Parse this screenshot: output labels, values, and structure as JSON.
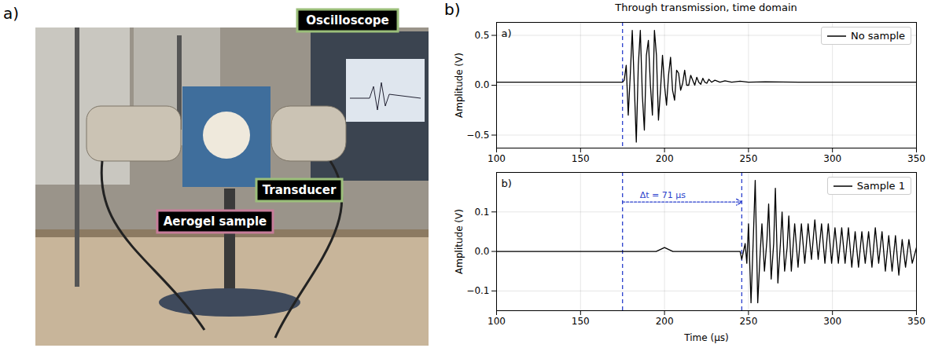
{
  "figure": {
    "panels": [
      {
        "label": "a)",
        "type": "photo",
        "labels": [
          "Oscilloscope",
          "Transducer",
          "Aerogel sample"
        ]
      },
      {
        "label": "b)",
        "title": "Through transmission, time domain"
      }
    ]
  },
  "chart_data": [
    {
      "type": "line",
      "panel_label": "a)",
      "x": [
        100,
        175,
        176,
        177.2,
        178.4,
        179.6,
        180.8,
        182,
        183.2,
        184.4,
        185.6,
        186.8,
        188,
        189.2,
        190.4,
        191.6,
        192.8,
        194,
        195.2,
        196.4,
        197.6,
        198.8,
        200,
        201.2,
        202.4,
        203.6,
        204.8,
        206,
        207.2,
        208.4,
        209.6,
        210.8,
        212,
        213.2,
        214.4,
        215.6,
        216.8,
        218,
        219.2,
        220.4,
        221.6,
        222.8,
        224,
        225.2,
        226.4,
        228,
        230,
        233,
        236,
        240,
        245,
        250,
        260,
        280,
        300,
        350
      ],
      "series": [
        {
          "name": "No sample",
          "color": "#000000",
          "line_style": "solid",
          "values": [
            0.03,
            0.03,
            0.05,
            0.2,
            -0.3,
            0.1,
            0.55,
            0.0,
            -0.57,
            0.2,
            0.55,
            -0.1,
            -0.45,
            0.3,
            0.45,
            0.0,
            -0.3,
            0.55,
            0.3,
            -0.35,
            -0.05,
            0.3,
            0.0,
            -0.2,
            0.1,
            0.28,
            -0.05,
            -0.15,
            0.15,
            0.12,
            -0.05,
            0.02,
            0.15,
            0.0,
            0.0,
            0.1,
            0.05,
            0.0,
            0.08,
            0.03,
            0.01,
            0.07,
            0.03,
            0.02,
            0.06,
            0.03,
            0.05,
            0.03,
            0.045,
            0.03,
            0.04,
            0.03,
            0.035,
            0.03,
            0.03,
            0.03
          ]
        }
      ],
      "xlim": [
        100,
        350
      ],
      "xticks": [
        100,
        150,
        200,
        250,
        300,
        350
      ],
      "ylim": [
        -0.63,
        0.63
      ],
      "yticks": [
        {
          "value": -0.5,
          "label": "−0.5"
        },
        {
          "value": 0,
          "label": "0.0"
        },
        {
          "value": 0.5,
          "label": "0.5"
        }
      ],
      "ylabel": "Amplitude (V)",
      "grid": true,
      "legend": "upper right",
      "vlines": {
        "x": [
          175
        ],
        "color": "#2a3fcc",
        "line_style": "dashed"
      }
    },
    {
      "type": "line",
      "panel_label": "b)",
      "x": [
        100,
        170,
        195,
        200,
        205,
        240,
        245,
        246,
        248,
        249,
        250,
        251.5,
        253,
        254,
        255.5,
        257,
        258,
        259.5,
        261,
        262,
        263.5,
        265,
        266,
        267.5,
        269,
        270,
        271.5,
        273,
        274,
        275.5,
        277.5,
        279.5,
        281.5,
        283.5,
        285.5,
        287.5,
        289.5,
        291.5,
        293.5,
        295.5,
        297.5,
        299.5,
        301.5,
        303.5,
        305.5,
        307.5,
        309.5,
        311.5,
        313.5,
        315.5,
        317.5,
        319.5,
        321.5,
        323.5,
        325.5,
        327.5,
        329.5,
        331.5,
        333.5,
        335.5,
        337.5,
        339.5,
        341.5,
        343.5,
        345.5,
        347.5,
        350
      ],
      "series": [
        {
          "name": "Sample 1",
          "color": "#000000",
          "line_style": "solid",
          "values": [
            0,
            0,
            0,
            0.01,
            0,
            0,
            0,
            -0.02,
            0.02,
            -0.03,
            0.07,
            -0.13,
            0.05,
            0.18,
            -0.13,
            0,
            0.07,
            -0.05,
            0.03,
            0.12,
            -0.07,
            0.02,
            0.16,
            -0.08,
            0.02,
            0.1,
            -0.05,
            0.01,
            0.09,
            -0.05,
            0.07,
            -0.04,
            0.07,
            -0.03,
            0.07,
            -0.02,
            0.08,
            -0.02,
            0.07,
            -0.03,
            0.07,
            -0.03,
            0.06,
            -0.03,
            0.06,
            -0.03,
            0.06,
            -0.04,
            0.05,
            -0.04,
            0.05,
            -0.03,
            0.05,
            -0.04,
            0.06,
            -0.03,
            0.05,
            -0.05,
            0.04,
            -0.05,
            0.04,
            -0.06,
            0.03,
            -0.04,
            0.03,
            -0.03,
            0.01
          ]
        }
      ],
      "xlim": [
        100,
        350
      ],
      "xticks": [
        100,
        150,
        200,
        250,
        300,
        350
      ],
      "ylim": [
        -0.15,
        0.2
      ],
      "yticks": [
        {
          "value": -0.1,
          "label": "−0.1"
        },
        {
          "value": 0,
          "label": "0.0"
        },
        {
          "value": 0.1,
          "label": "0.1"
        }
      ],
      "xlabel": "Time (μs)",
      "ylabel": "Amplitude (V)",
      "grid": true,
      "legend": "upper right",
      "vlines": {
        "x": [
          175,
          246
        ],
        "color": "#2a3fcc",
        "line_style": "dashed"
      },
      "annotations": [
        {
          "text": "Δt = 71 μs",
          "x_start": 175,
          "x_end": 246,
          "y": 0.125,
          "color": "#2a3fcc"
        }
      ]
    }
  ]
}
